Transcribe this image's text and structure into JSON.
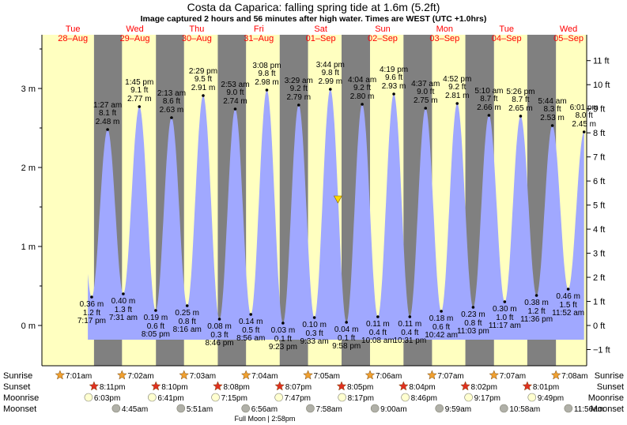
{
  "chart_data": {
    "type": "area",
    "title": "Costa da Caparica: falling  spring tide at 1.6m (5.2ft)",
    "subtitle": "Image captured 2 hours and 56 minutes after high water. Times are WEST (UTC +1.0hrs)",
    "y_left_unit": "m",
    "y_left_ticks": [
      "0 m",
      "1 m",
      "2 m",
      "3 m"
    ],
    "y_right_ticks": [
      "−1 ft",
      "0 ft",
      "1 ft",
      "2 ft",
      "3 ft",
      "4 ft",
      "5 ft",
      "6 ft",
      "7 ft",
      "8 ft",
      "9 ft",
      "10 ft",
      "11 ft"
    ],
    "ylim_m": [
      -0.5,
      3.6
    ],
    "days": [
      {
        "dow": "Tue",
        "date": "28–Aug"
      },
      {
        "dow": "Wed",
        "date": "29–Aug"
      },
      {
        "dow": "Thu",
        "date": "30–Aug"
      },
      {
        "dow": "Fri",
        "date": "31–Aug"
      },
      {
        "dow": "Sat",
        "date": "01–Sep"
      },
      {
        "dow": "Sun",
        "date": "02–Sep"
      },
      {
        "dow": "Mon",
        "date": "03–Sep"
      },
      {
        "dow": "Tue",
        "date": "04–Sep"
      },
      {
        "dow": "Wed",
        "date": "05–Sep"
      }
    ],
    "tides": [
      {
        "type": "low",
        "t": 19.28,
        "time": "7:17 pm",
        "m": 0.36,
        "m_label": "0.36 m",
        "ft_label": "1.2 ft"
      },
      {
        "type": "high",
        "t": 25.45,
        "time": "1:27 am",
        "m": 2.48,
        "m_label": "2.48 m",
        "ft_label": "8.1 ft"
      },
      {
        "type": "low",
        "t": 31.52,
        "time": "7:31 am",
        "m": 0.4,
        "m_label": "0.40 m",
        "ft_label": "1.3 ft"
      },
      {
        "type": "high",
        "t": 37.75,
        "time": "1:45 pm",
        "m": 2.77,
        "m_label": "2.77 m",
        "ft_label": "9.1 ft"
      },
      {
        "type": "low",
        "t": 44.08,
        "time": "8:05 pm",
        "m": 0.19,
        "m_label": "0.19 m",
        "ft_label": "0.6 ft"
      },
      {
        "type": "high",
        "t": 50.22,
        "time": "2:13 am",
        "m": 2.63,
        "m_label": "2.63 m",
        "ft_label": "8.6 ft"
      },
      {
        "type": "low",
        "t": 56.27,
        "time": "8:16 am",
        "m": 0.25,
        "m_label": "0.25 m",
        "ft_label": "0.8 ft"
      },
      {
        "type": "high",
        "t": 62.48,
        "time": "2:29 pm",
        "m": 2.91,
        "m_label": "2.91 m",
        "ft_label": "9.5 ft"
      },
      {
        "type": "low",
        "t": 68.77,
        "time": "8:46 pm",
        "m": 0.08,
        "m_label": "0.08 m",
        "ft_label": "0.3 ft"
      },
      {
        "type": "high",
        "t": 74.88,
        "time": "2:53 am",
        "m": 2.74,
        "m_label": "2.74 m",
        "ft_label": "9.0 ft"
      },
      {
        "type": "low",
        "t": 80.93,
        "time": "8:56 am",
        "m": 0.14,
        "m_label": "0.14 m",
        "ft_label": "0.5 ft"
      },
      {
        "type": "high",
        "t": 87.13,
        "time": "3:08 pm",
        "m": 2.98,
        "m_label": "2.98 m",
        "ft_label": "9.8 ft"
      },
      {
        "type": "low",
        "t": 93.38,
        "time": "9:23 pm",
        "m": 0.03,
        "m_label": "0.03 m",
        "ft_label": "0.1 ft"
      },
      {
        "type": "high",
        "t": 99.48,
        "time": "3:29 am",
        "m": 2.79,
        "m_label": "2.79 m",
        "ft_label": "9.2 ft"
      },
      {
        "type": "low",
        "t": 105.55,
        "time": "9:33 am",
        "m": 0.1,
        "m_label": "0.10 m",
        "ft_label": "0.3 ft"
      },
      {
        "type": "high",
        "t": 111.73,
        "time": "3:44 pm",
        "m": 2.99,
        "m_label": "2.99 m",
        "ft_label": "9.8 ft"
      },
      {
        "type": "low",
        "t": 117.97,
        "time": "9:58 pm",
        "m": 0.04,
        "m_label": "0.04 m",
        "ft_label": "0.1 ft"
      },
      {
        "type": "high",
        "t": 124.07,
        "time": "4:04 am",
        "m": 2.8,
        "m_label": "2.80 m",
        "ft_label": "9.2 ft"
      },
      {
        "type": "low",
        "t": 130.13,
        "time": "10:08 am",
        "m": 0.11,
        "m_label": "0.11 m",
        "ft_label": "0.4 ft"
      },
      {
        "type": "high",
        "t": 136.32,
        "time": "4:19 pm",
        "m": 2.93,
        "m_label": "2.93 m",
        "ft_label": "9.6 ft"
      },
      {
        "type": "low",
        "t": 142.52,
        "time": "10:31 pm",
        "m": 0.11,
        "m_label": "0.11 m",
        "ft_label": "0.4 ft"
      },
      {
        "type": "high",
        "t": 148.62,
        "time": "4:37 am",
        "m": 2.75,
        "m_label": "2.75 m",
        "ft_label": "9.0 ft"
      },
      {
        "type": "low",
        "t": 154.7,
        "time": "10:42 am",
        "m": 0.18,
        "m_label": "0.18 m",
        "ft_label": "0.6 ft"
      },
      {
        "type": "high",
        "t": 160.87,
        "time": "4:52 pm",
        "m": 2.81,
        "m_label": "2.81 m",
        "ft_label": "9.2 ft"
      },
      {
        "type": "low",
        "t": 167.05,
        "time": "11:03 pm",
        "m": 0.23,
        "m_label": "0.23 m",
        "ft_label": "0.8 ft"
      },
      {
        "type": "high",
        "t": 173.17,
        "time": "5:10 am",
        "m": 2.66,
        "m_label": "2.66 m",
        "ft_label": "8.7 ft"
      },
      {
        "type": "low",
        "t": 179.28,
        "time": "11:17 am",
        "m": 0.3,
        "m_label": "0.30 m",
        "ft_label": "1.0 ft"
      },
      {
        "type": "high",
        "t": 185.43,
        "time": "5:26 pm",
        "m": 2.65,
        "m_label": "2.65 m",
        "ft_label": "8.7 ft"
      },
      {
        "type": "low",
        "t": 191.6,
        "time": "11:36 pm",
        "m": 0.38,
        "m_label": "0.38 m",
        "ft_label": "1.2 ft"
      },
      {
        "type": "high",
        "t": 197.73,
        "time": "5:44 am",
        "m": 2.53,
        "m_label": "2.53 m",
        "ft_label": "8.3 ft"
      },
      {
        "type": "low",
        "t": 203.87,
        "time": "11:52 am",
        "m": 0.46,
        "m_label": "0.46 m",
        "ft_label": "1.5 ft"
      },
      {
        "type": "high",
        "t": 210.02,
        "time": "6:01 pm",
        "m": 2.45,
        "m_label": "2.45 m",
        "ft_label": "8.0 ft"
      }
    ],
    "current": {
      "t": 114.67,
      "m": 1.6
    },
    "sunrise": [
      {
        "t": 7.02,
        "time": "7:01am"
      },
      {
        "t": 31.03,
        "time": "7:02am"
      },
      {
        "t": 55.05,
        "time": "7:03am"
      },
      {
        "t": 79.07,
        "time": "7:04am"
      },
      {
        "t": 103.08,
        "time": "7:05am"
      },
      {
        "t": 127.1,
        "time": "7:06am"
      },
      {
        "t": 151.12,
        "time": "7:07am"
      },
      {
        "t": 175.12,
        "time": "7:07am"
      },
      {
        "t": 199.13,
        "time": "7:08am"
      }
    ],
    "sunset": [
      {
        "t": 20.18,
        "time": "8:11pm"
      },
      {
        "t": 44.17,
        "time": "8:10pm"
      },
      {
        "t": 68.13,
        "time": "8:08pm"
      },
      {
        "t": 92.12,
        "time": "8:07pm"
      },
      {
        "t": 116.08,
        "time": "8:05pm"
      },
      {
        "t": 140.07,
        "time": "8:04pm"
      },
      {
        "t": 164.03,
        "time": "8:02pm"
      },
      {
        "t": 188.02,
        "time": "8:01pm"
      }
    ],
    "moonrise": [
      {
        "t": 18.05,
        "time": "6:03pm"
      },
      {
        "t": 42.68,
        "time": "6:41pm"
      },
      {
        "t": 67.25,
        "time": "7:15pm"
      },
      {
        "t": 91.78,
        "time": "7:47pm"
      },
      {
        "t": 116.28,
        "time": "8:17pm"
      },
      {
        "t": 140.77,
        "time": "8:46pm"
      },
      {
        "t": 165.28,
        "time": "9:17pm"
      },
      {
        "t": 189.82,
        "time": "9:49pm"
      }
    ],
    "moonset": [
      {
        "t": 28.75,
        "time": "4:45am"
      },
      {
        "t": 53.85,
        "time": "5:51am"
      },
      {
        "t": 78.93,
        "time": "6:56am"
      },
      {
        "t": 103.97,
        "time": "7:58am"
      },
      {
        "t": 129.0,
        "time": "9:00am"
      },
      {
        "t": 153.98,
        "time": "9:59am"
      },
      {
        "t": 178.97,
        "time": "10:58am"
      },
      {
        "t": 203.93,
        "time": "11:56am"
      }
    ],
    "row_labels": {
      "sunrise": "Sunrise",
      "sunset": "Sunset",
      "moonrise": "Moonrise",
      "moonset": "Moonset"
    },
    "full_moon": {
      "t": 86.97,
      "label": "Full Moon | 2:58pm"
    },
    "colors": {
      "day": "#ffffc0",
      "night": "#808080",
      "water": "#a0a8ff",
      "sun_mark": "#f0a030",
      "sunset_mark": "#e03020",
      "moonrise_mark": "#ffffd0",
      "moonset_mark": "#b0b0a8",
      "date": "#ff0000",
      "current_mark": "#ffd800"
    }
  }
}
